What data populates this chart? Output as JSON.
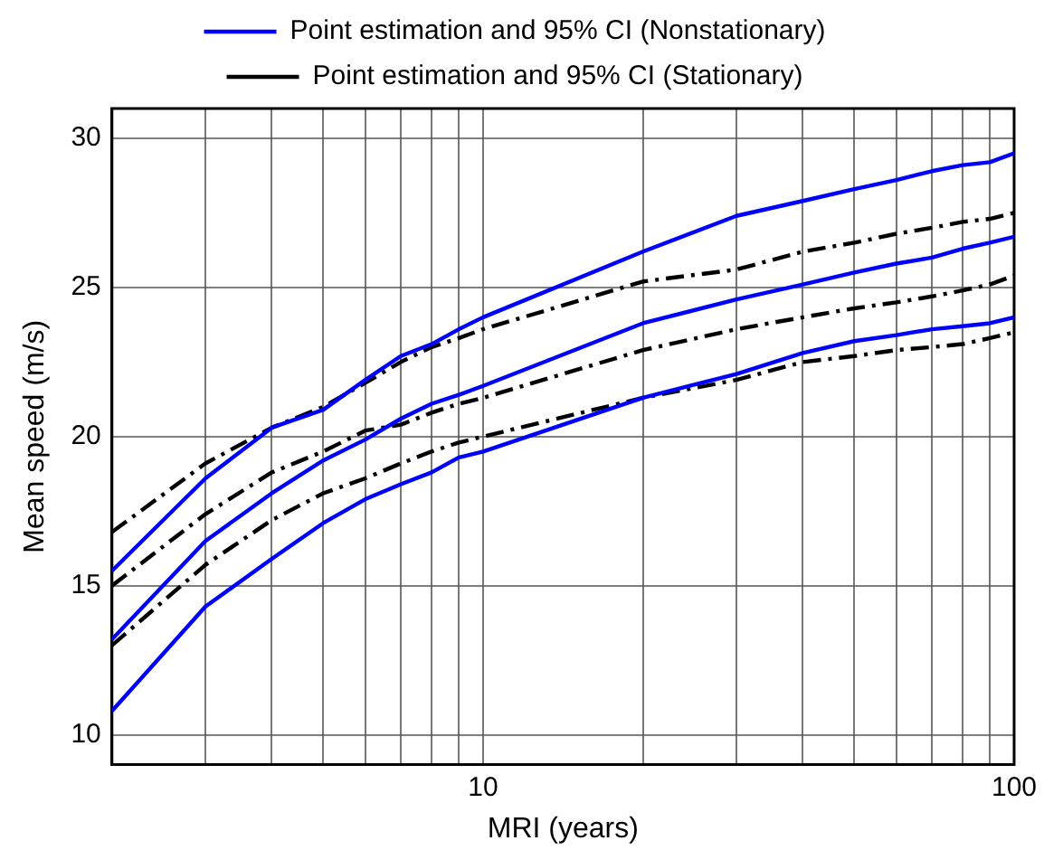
{
  "chart_data": {
    "type": "line",
    "xlabel": "MRI (years)",
    "ylabel": "Mean speed (m/s)",
    "log": "x",
    "grid": true,
    "legend": "top",
    "marker": "none",
    "x": [
      2,
      3,
      4,
      5,
      6,
      7,
      8,
      9,
      10,
      20,
      30,
      40,
      50,
      60,
      70,
      80,
      90,
      100
    ],
    "xlim": [
      2,
      100
    ],
    "xticks": [
      {
        "value": 3,
        "label": null
      },
      {
        "value": 4,
        "label": null
      },
      {
        "value": 5,
        "label": null
      },
      {
        "value": 6,
        "label": null
      },
      {
        "value": 7,
        "label": null
      },
      {
        "value": 8,
        "label": null
      },
      {
        "value": 9,
        "label": null
      },
      10,
      {
        "value": 20,
        "label": null
      },
      {
        "value": 30,
        "label": null
      },
      {
        "value": 40,
        "label": null
      },
      {
        "value": 50,
        "label": null
      },
      {
        "value": 60,
        "label": null
      },
      {
        "value": 70,
        "label": null
      },
      {
        "value": 80,
        "label": null
      },
      {
        "value": 90,
        "label": null
      },
      100
    ],
    "ylim": [
      9,
      31
    ],
    "yticks": [
      10,
      15,
      20,
      25,
      30
    ],
    "series": [
      {
        "name": "Point estimation and 95% CI (Nonstationary)",
        "color": "#0000ff",
        "line_style": "solid",
        "values": [
          15.5,
          18.6,
          20.3,
          20.9,
          21.9,
          22.7,
          23.1,
          23.6,
          24.0,
          26.2,
          27.4,
          27.9,
          28.3,
          28.6,
          28.9,
          29.1,
          29.2,
          29.5
        ]
      },
      {
        "name": "Point estimation and 95% CI (Stationary)",
        "color": "#000000",
        "line_style": "dashed",
        "values": [
          16.8,
          19.1,
          20.3,
          21.0,
          21.8,
          22.5,
          23.0,
          23.3,
          23.6,
          25.2,
          25.6,
          26.2,
          26.5,
          26.8,
          27.0,
          27.2,
          27.3,
          27.5
        ]
      },
      {
        "color": "#0000ff",
        "line_style": "solid",
        "values": [
          13.2,
          16.5,
          18.1,
          19.2,
          19.9,
          20.6,
          21.1,
          21.4,
          21.7,
          23.8,
          24.6,
          25.1,
          25.5,
          25.8,
          26.0,
          26.3,
          26.5,
          26.7
        ]
      },
      {
        "color": "#0000ff",
        "line_style": "solid",
        "values": [
          10.8,
          14.3,
          15.9,
          17.1,
          17.9,
          18.4,
          18.8,
          19.3,
          19.5,
          21.3,
          22.1,
          22.8,
          23.2,
          23.4,
          23.6,
          23.7,
          23.8,
          24.0
        ]
      },
      {
        "color": "#000000",
        "line_style": "dashed",
        "values": [
          15.0,
          17.4,
          18.8,
          19.5,
          20.2,
          20.4,
          20.8,
          21.1,
          21.3,
          22.9,
          23.6,
          24.0,
          24.3,
          24.5,
          24.7,
          24.9,
          25.1,
          25.4
        ]
      },
      {
        "color": "#000000",
        "line_style": "dashed",
        "values": [
          13.0,
          15.7,
          17.2,
          18.1,
          18.6,
          19.1,
          19.5,
          19.8,
          20.0,
          21.3,
          21.9,
          22.5,
          22.7,
          22.9,
          23.0,
          23.1,
          23.3,
          23.5
        ]
      }
    ]
  }
}
